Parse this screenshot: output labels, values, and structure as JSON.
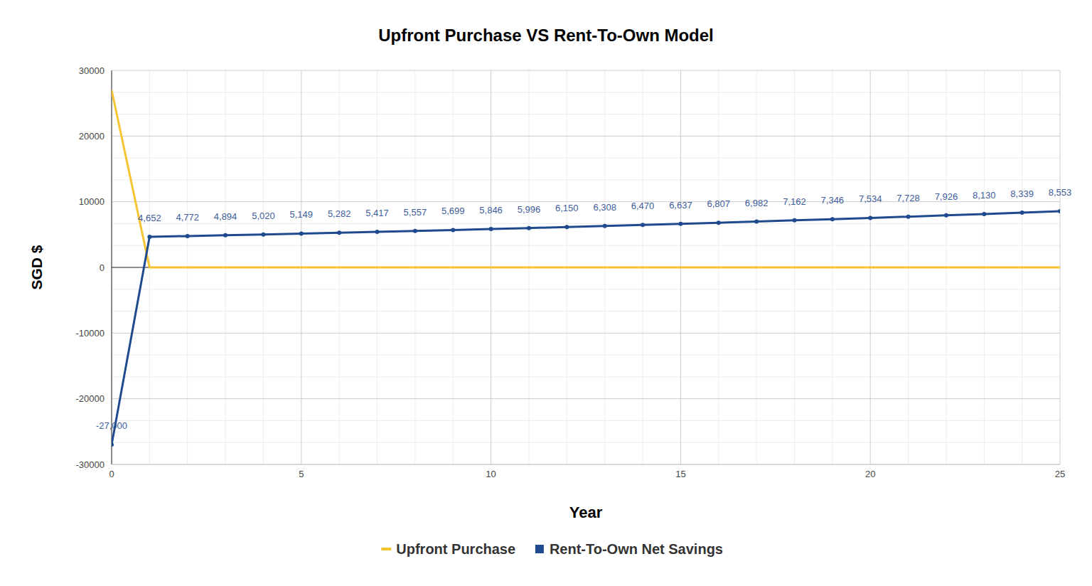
{
  "chart_data": {
    "type": "line",
    "title": "Upfront Purchase VS Rent-To-Own Model",
    "x_label": "Year",
    "y_label": "SGD $",
    "x": [
      0,
      1,
      2,
      3,
      4,
      5,
      6,
      7,
      8,
      9,
      10,
      11,
      12,
      13,
      14,
      15,
      16,
      17,
      18,
      19,
      20,
      21,
      22,
      23,
      24,
      25
    ],
    "series": [
      {
        "name": "Upfront Purchase",
        "color": "#f4c431",
        "marker": "none",
        "line_style": "solid",
        "values": [
          27000,
          0,
          0,
          0,
          0,
          0,
          0,
          0,
          0,
          0,
          0,
          0,
          0,
          0,
          0,
          0,
          0,
          0,
          0,
          0,
          0,
          0,
          0,
          0,
          0,
          0
        ]
      },
      {
        "name": "Rent-To-Own Net Savings",
        "color": "#1f4b8e",
        "marker": "circle",
        "line_style": "solid",
        "data_labels": true,
        "values": [
          -27000,
          4652,
          4772,
          4894,
          5020,
          5149,
          5282,
          5417,
          5557,
          5699,
          5846,
          5996,
          6150,
          6308,
          6470,
          6637,
          6807,
          6982,
          7162,
          7346,
          7534,
          7728,
          7926,
          8130,
          8339,
          8553
        ],
        "value_labels": [
          "-27,000",
          "4,652",
          "4,772",
          "4,894",
          "5,020",
          "5,149",
          "5,282",
          "5,417",
          "5,557",
          "5,699",
          "5,846",
          "5,996",
          "6,150",
          "6,308",
          "6,470",
          "6,637",
          "6,807",
          "6,982",
          "7,162",
          "7,346",
          "7,534",
          "7,728",
          "7,926",
          "8,130",
          "8,339",
          "8,553"
        ]
      }
    ],
    "xlim": [
      0,
      25
    ],
    "xticks": [
      0,
      5,
      10,
      15,
      20,
      25
    ],
    "ylim": [
      -30000,
      30000
    ],
    "yticks": [
      -30000,
      -20000,
      -10000,
      0,
      10000,
      20000,
      30000
    ],
    "grid": true,
    "legend": "bottom"
  }
}
